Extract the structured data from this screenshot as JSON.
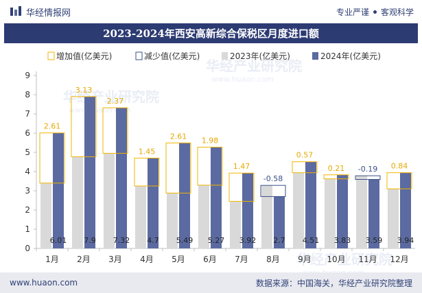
{
  "header": {
    "brand": "华经情报网",
    "slogan_left": "专业严谨",
    "slogan_right": "客观科学"
  },
  "title": "2023-2024年西安高新综合保税区月度进口额",
  "footer": {
    "website": "www.huaon.com",
    "source": "数据来源：中国海关，华经产业研究院整理"
  },
  "watermark": {
    "cn": "华经产业研究院",
    "en": "www.huaon.com"
  },
  "colors": {
    "title_bg": "#2d3b73",
    "bar_2023": "#d9d9d9",
    "bar_2024": "#5b6aa0",
    "increase": "#f0b400",
    "decrease": "#3a4f8a",
    "increase_label": "#e6a800",
    "decrease_label": "#3a4f8a"
  },
  "chart_data": {
    "type": "bar",
    "categories": [
      "1月",
      "2月",
      "3月",
      "4月",
      "5月",
      "6月",
      "7月",
      "8月",
      "9月",
      "10月",
      "11月",
      "12月"
    ],
    "series": [
      {
        "name": "2023年(亿美元)",
        "values": [
          3.4,
          4.77,
          4.95,
          3.25,
          2.88,
          3.29,
          2.45,
          3.28,
          3.94,
          3.62,
          3.78,
          3.1
        ]
      },
      {
        "name": "2024年(亿美元)",
        "values": [
          6.01,
          7.9,
          7.32,
          4.7,
          5.49,
          5.27,
          3.92,
          2.7,
          4.51,
          3.83,
          3.59,
          3.94
        ]
      }
    ],
    "change": [
      2.61,
      3.13,
      2.37,
      1.45,
      2.61,
      1.98,
      1.47,
      -0.58,
      0.57,
      0.21,
      -0.19,
      0.84
    ],
    "change_labels": [
      "2.61",
      "3.13",
      "2.37",
      "1.45",
      "2.61",
      "1.98",
      "1.47",
      "-0.58",
      "0.57",
      "0.21",
      "-0.19",
      "0.84"
    ],
    "value_labels_2024": [
      "6.01",
      "7.9",
      "7.32",
      "4.7",
      "5.49",
      "5.27",
      "3.92",
      "2.7",
      "4.51",
      "3.83",
      "3.59",
      "3.94"
    ],
    "legend": [
      "增加值(亿美元)",
      "减少值(亿美元)",
      "2023年(亿美元)",
      "2024年(亿美元)"
    ],
    "legend_position": "top",
    "ylim": [
      0,
      9
    ],
    "yticks": [
      "0",
      "1",
      "2",
      "3",
      "4",
      "5",
      "6",
      "7",
      "8",
      "9"
    ],
    "grid": false
  }
}
